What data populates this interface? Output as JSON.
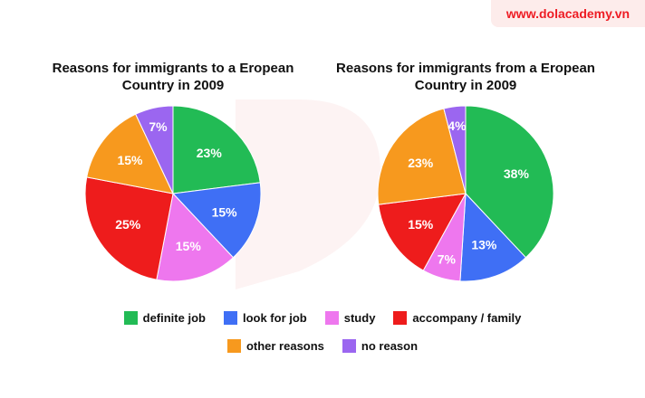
{
  "brand": "www.dolacademy.vn",
  "legend": [
    {
      "label": "definite job",
      "color": "#22bb55"
    },
    {
      "label": "look for job",
      "color": "#3f6ff5"
    },
    {
      "label": "study",
      "color": "#ee77ee"
    },
    {
      "label": "accompany / family",
      "color": "#ee1c1c"
    },
    {
      "label": "other reasons",
      "color": "#f7991e"
    },
    {
      "label": "no reason",
      "color": "#9b66f0"
    }
  ],
  "chart_data": [
    {
      "type": "pie",
      "title": "Reasons for immigrants to a Eropean Country in 2009",
      "categories": [
        "definite job",
        "look for job",
        "study",
        "accompany / family",
        "other reasons",
        "no reason"
      ],
      "values": [
        23,
        15,
        15,
        25,
        15,
        7
      ],
      "labels": [
        "23%",
        "15%",
        "15%",
        "25%",
        "15%",
        "7%"
      ]
    },
    {
      "type": "pie",
      "title": "Reasons for immigrants from a Eropean Country in 2009",
      "categories": [
        "definite job",
        "look for job",
        "study",
        "accompany / family",
        "other reasons",
        "no reason"
      ],
      "values": [
        38,
        13,
        7,
        15,
        23,
        4
      ],
      "labels": [
        "38%",
        "13%",
        "7%",
        "15%",
        "23%",
        "4%"
      ]
    }
  ]
}
